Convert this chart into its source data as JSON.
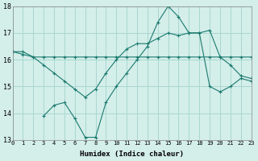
{
  "xlabel": "Humidex (Indice chaleur)",
  "bg_color": "#d4eeea",
  "grid_color": "#a8d8d0",
  "line_color": "#1a7a6e",
  "line1_x": [
    0,
    1,
    2,
    3,
    4,
    5,
    6,
    7,
    8,
    9,
    10,
    11,
    12,
    13,
    14,
    15,
    16,
    17,
    18,
    19,
    20,
    21,
    22,
    23
  ],
  "line1_y": [
    16.3,
    16.3,
    16.1,
    16.1,
    16.1,
    16.1,
    16.1,
    16.1,
    16.1,
    16.1,
    16.1,
    16.1,
    16.1,
    16.1,
    16.1,
    16.1,
    16.1,
    16.1,
    16.1,
    16.1,
    16.1,
    16.1,
    16.1,
    16.1
  ],
  "line2_x": [
    0,
    1,
    2,
    3,
    4,
    5,
    6,
    7,
    8,
    9,
    10,
    11,
    12,
    13,
    14,
    15,
    16,
    17,
    18,
    19,
    20,
    21,
    22,
    23
  ],
  "line2_y": [
    16.3,
    16.2,
    16.1,
    15.8,
    15.5,
    15.2,
    14.9,
    14.6,
    14.9,
    15.5,
    16.0,
    16.4,
    16.6,
    16.6,
    16.8,
    17.0,
    16.9,
    17.0,
    17.0,
    17.1,
    16.1,
    15.8,
    15.4,
    15.3
  ],
  "line3_x": [
    3,
    4,
    5,
    6,
    7,
    8,
    9,
    10,
    11,
    12,
    13,
    14,
    15,
    16,
    17,
    18,
    19,
    20,
    21,
    22,
    23
  ],
  "line3_y": [
    13.9,
    14.3,
    14.4,
    13.8,
    13.1,
    13.1,
    14.4,
    15.0,
    15.5,
    16.0,
    16.5,
    17.4,
    18.0,
    17.6,
    17.0,
    17.0,
    15.0,
    14.8,
    15.0,
    15.3,
    15.2
  ],
  "ylim": [
    13,
    18
  ],
  "yticks": [
    13,
    14,
    15,
    16,
    17,
    18
  ],
  "xlim": [
    0,
    23
  ],
  "xticks": [
    0,
    1,
    2,
    3,
    4,
    5,
    6,
    7,
    8,
    9,
    10,
    11,
    12,
    13,
    14,
    15,
    16,
    17,
    18,
    19,
    20,
    21,
    22,
    23
  ]
}
